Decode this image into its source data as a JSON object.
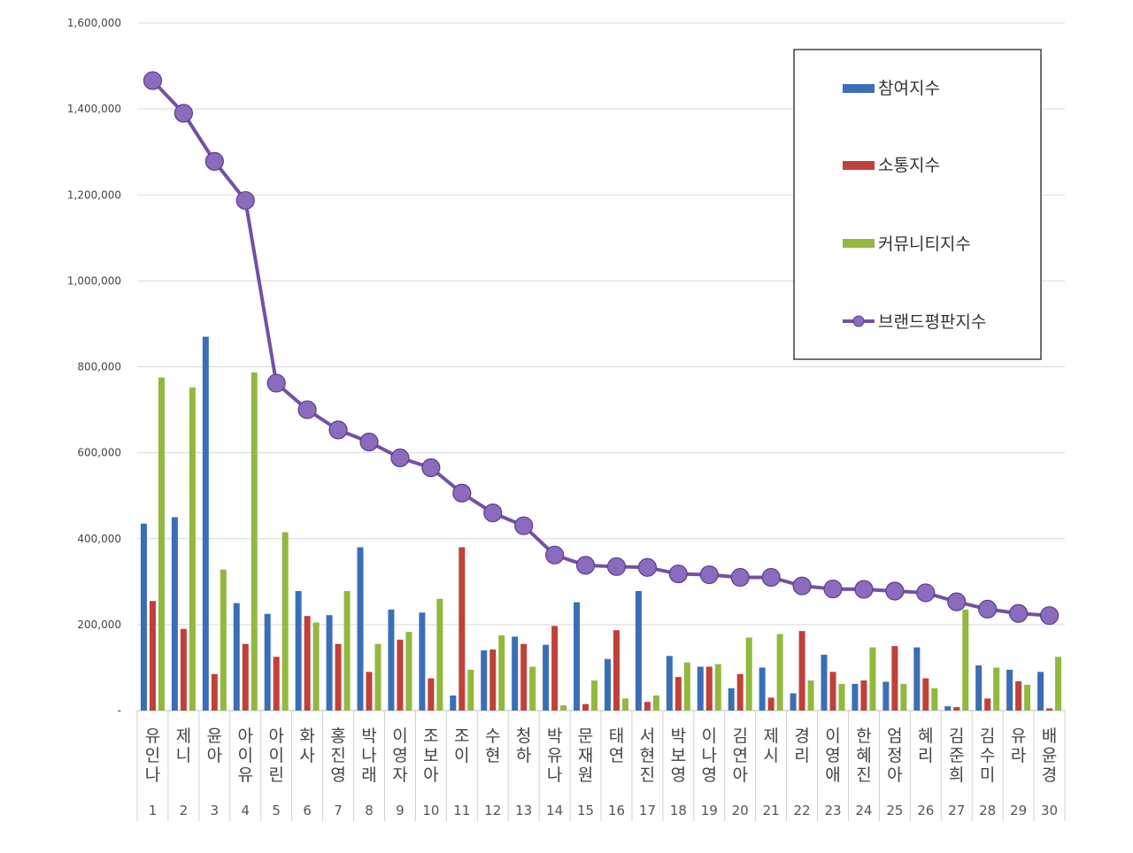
{
  "chart_data": {
    "type": "bar",
    "categories": [
      "유인나",
      "제니",
      "윤아",
      "아이유",
      "아이린",
      "화사",
      "홍진영",
      "박나래",
      "이영자",
      "조보아",
      "조이",
      "수현",
      "청하",
      "박유나",
      "문재원",
      "태연",
      "서현진",
      "박보영",
      "이나영",
      "김연아",
      "제시",
      "경리",
      "이영애",
      "한혜진",
      "엄정아",
      "혜리",
      "김준희",
      "김수미",
      "유라",
      "배윤경"
    ],
    "ranks": [
      "1",
      "2",
      "3",
      "4",
      "5",
      "6",
      "7",
      "8",
      "9",
      "10",
      "11",
      "12",
      "13",
      "14",
      "15",
      "16",
      "17",
      "18",
      "19",
      "20",
      "21",
      "22",
      "23",
      "24",
      "25",
      "26",
      "27",
      "28",
      "29",
      "30"
    ],
    "y_tick_labels": [
      "-",
      "200,000",
      "400,000",
      "600,000",
      "800,000",
      "1,000,000",
      "1,200,000",
      "1,400,000",
      "1,600,000"
    ],
    "ylim": [
      0,
      1600000
    ],
    "grid": true,
    "legend_position": "top-right",
    "series": [
      {
        "name": "참여지수",
        "type": "bar",
        "color": "#3A6FB7",
        "values": [
          435000,
          450000,
          870000,
          250000,
          225000,
          278000,
          222000,
          380000,
          235000,
          228000,
          35000,
          140000,
          172000,
          153000,
          252000,
          120000,
          278000,
          127000,
          102000,
          52000,
          100000,
          40000,
          130000,
          62000,
          67000,
          147000,
          10000,
          105000,
          95000,
          90000
        ]
      },
      {
        "name": "소통지수",
        "type": "bar",
        "color": "#C0403A",
        "values": [
          255000,
          190000,
          85000,
          155000,
          125000,
          220000,
          155000,
          90000,
          165000,
          75000,
          380000,
          142000,
          155000,
          197000,
          15000,
          187000,
          20000,
          78000,
          102000,
          85000,
          30000,
          185000,
          90000,
          70000,
          150000,
          75000,
          8000,
          28000,
          68000,
          5000
        ]
      },
      {
        "name": "커뮤니티지수",
        "type": "bar",
        "color": "#92B83F",
        "values": [
          775000,
          752000,
          328000,
          787000,
          415000,
          205000,
          278000,
          155000,
          183000,
          260000,
          95000,
          175000,
          102000,
          12000,
          70000,
          28000,
          35000,
          112000,
          108000,
          170000,
          178000,
          70000,
          62000,
          147000,
          62000,
          52000,
          235000,
          100000,
          60000,
          125000
        ]
      },
      {
        "name": "브랜드평판지수",
        "type": "line",
        "color": "#7351A6",
        "values": [
          1466000,
          1390000,
          1278000,
          1187000,
          762000,
          700000,
          653000,
          625000,
          588000,
          565000,
          506000,
          460000,
          430000,
          362000,
          338000,
          335000,
          333000,
          318000,
          316000,
          310000,
          310000,
          290000,
          283000,
          282000,
          278000,
          274000,
          253000,
          236000,
          226000,
          221000
        ]
      }
    ]
  }
}
